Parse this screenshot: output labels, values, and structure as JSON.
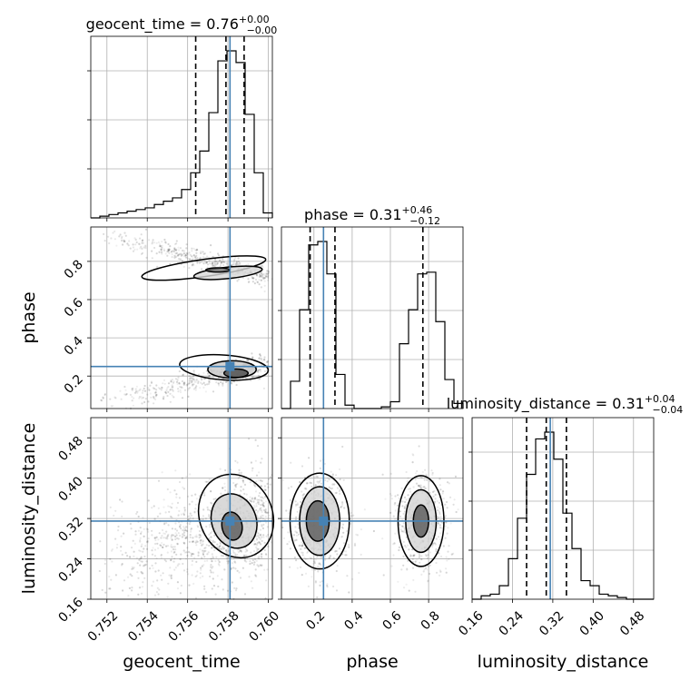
{
  "chart_data": {
    "type": "corner",
    "parameters": [
      "geocent_time",
      "phase",
      "luminosity_distance"
    ],
    "titles": [
      {
        "name": "geocent_time",
        "value": "0.76",
        "plus": "+0.00",
        "minus": "−0.00"
      },
      {
        "name": "phase",
        "value": "0.31",
        "plus": "+0.46",
        "minus": "−0.12"
      },
      {
        "name": "luminosity_distance",
        "value": "0.31",
        "plus": "+0.04",
        "minus": "−0.04"
      }
    ],
    "ranges": {
      "geocent_time": [
        0.7512,
        0.7602
      ],
      "phase": [
        0.03,
        0.98
      ],
      "luminosity_distance": [
        0.16,
        0.52
      ]
    },
    "ticks": {
      "geocent_time": {
        "values": [
          0.752,
          0.754,
          0.756,
          0.758,
          0.76
        ],
        "labels": [
          "0.752",
          "0.754",
          "0.756",
          "0.758",
          "0.760"
        ]
      },
      "phase_x": {
        "values": [
          0.2,
          0.4,
          0.6,
          0.8
        ],
        "labels": [
          "0.2",
          "0.4",
          "0.6",
          "0.8"
        ]
      },
      "phase_y": {
        "values": [
          0.2,
          0.4,
          0.6,
          0.8
        ],
        "labels": [
          "0.2",
          "0.4",
          "0.6",
          "0.8"
        ]
      },
      "luminosity_distance_x": {
        "values": [
          0.16,
          0.24,
          0.32,
          0.4,
          0.48
        ],
        "labels": [
          "0.16",
          "0.24",
          "0.32",
          "0.40",
          "0.48"
        ]
      },
      "luminosity_distance_y": {
        "values": [
          0.16,
          0.24,
          0.32,
          0.4,
          0.48
        ],
        "labels": [
          "0.16",
          "0.24",
          "0.32",
          "0.40",
          "0.48"
        ]
      }
    },
    "truths": {
      "geocent_time": 0.7581,
      "phase": 0.25,
      "luminosity_distance": 0.315
    },
    "quantiles": {
      "geocent_time": [
        0.7564,
        0.7579,
        0.7588
      ],
      "phase": [
        0.18,
        0.31,
        0.77
      ],
      "luminosity_distance": [
        0.268,
        0.307,
        0.347
      ]
    },
    "histograms": {
      "geocent_time": {
        "edges": [
          0.7512,
          0.75165,
          0.7521,
          0.75255,
          0.753,
          0.75345,
          0.7539,
          0.75435,
          0.7548,
          0.75525,
          0.7557,
          0.75615,
          0.7566,
          0.75705,
          0.7575,
          0.75795,
          0.7584,
          0.75885,
          0.7593,
          0.75975,
          0.7602
        ],
        "counts": [
          0,
          1,
          2,
          3,
          4,
          5,
          6,
          8,
          10,
          12,
          17,
          27,
          40,
          63,
          94,
          100,
          93,
          62,
          27,
          3
        ]
      },
      "phase": {
        "edges": [
          0.03,
          0.0775,
          0.125,
          0.1725,
          0.22,
          0.2675,
          0.315,
          0.3625,
          0.41,
          0.4575,
          0.505,
          0.5525,
          0.6,
          0.6475,
          0.695,
          0.7425,
          0.79,
          0.8375,
          0.885,
          0.9325,
          0.98
        ],
        "counts": [
          0,
          16,
          58,
          96,
          98,
          79,
          20,
          2,
          0,
          0,
          0,
          1,
          4,
          38,
          58,
          79,
          80,
          51,
          17,
          3
        ]
      },
      "luminosity_distance": {
        "edges": [
          0.16,
          0.178,
          0.196,
          0.214,
          0.232,
          0.25,
          0.268,
          0.286,
          0.304,
          0.322,
          0.34,
          0.358,
          0.376,
          0.394,
          0.412,
          0.43,
          0.448,
          0.466,
          0.484,
          0.502,
          0.52
        ],
        "counts": [
          0,
          2,
          3,
          8,
          24,
          48,
          74,
          95,
          99,
          83,
          51,
          30,
          11,
          8,
          3,
          2,
          1,
          0,
          0,
          0
        ]
      }
    },
    "grid": true,
    "colors": {
      "truth": "#4682b4",
      "lines": "#000000"
    }
  }
}
